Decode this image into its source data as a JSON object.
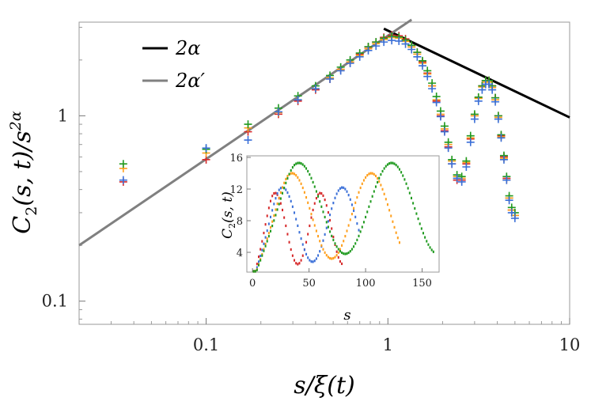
{
  "chart_data": [
    {
      "type": "scatter",
      "xscale": "log",
      "yscale": "log",
      "xlim": [
        0.02,
        10
      ],
      "ylim": [
        0.075,
        3.2
      ],
      "xticks": [
        {
          "v": 0.1,
          "label": "0.1"
        },
        {
          "v": 1,
          "label": "1"
        },
        {
          "v": 10,
          "label": "10"
        }
      ],
      "yticks": [
        {
          "v": 0.1,
          "label": "0.1"
        },
        {
          "v": 1,
          "label": "1"
        }
      ],
      "xlabel": "s/ξ(t)",
      "ylabel_main": "C",
      "ylabel_sub": "2",
      "ylabel_rest": "(s, t)/s",
      "ylabel_sup": "2α",
      "legend": [
        {
          "label": "2α",
          "color": "#000000"
        },
        {
          "label": "2α′",
          "color": "#808080"
        }
      ],
      "lines": [
        {
          "name": "2α",
          "color": "#000000",
          "x": [
            0.95,
            10
          ],
          "y": [
            2.95,
            0.98
          ]
        },
        {
          "name": "2α′",
          "color": "#808080",
          "x": [
            0.02,
            1.35
          ],
          "y": [
            0.2,
            3.3
          ]
        }
      ],
      "series": [
        {
          "color": "#d62728",
          "x": [
            0.035,
            0.1,
            0.17,
            0.25,
            0.32,
            0.4,
            0.48,
            0.55,
            0.62,
            0.7,
            0.78,
            0.86,
            0.95,
            1.05,
            1.15,
            1.25,
            1.35,
            1.45,
            1.55,
            1.65,
            1.75,
            1.85,
            1.95,
            2.05,
            2.15,
            2.25,
            2.4,
            2.55,
            2.7,
            2.85,
            3.0,
            3.15,
            3.3,
            3.45,
            3.6,
            3.75,
            3.9,
            4.05,
            4.2,
            4.35,
            4.5,
            4.65,
            4.8,
            5.0
          ],
          "y": [
            0.44,
            0.58,
            0.82,
            1.02,
            1.2,
            1.38,
            1.58,
            1.78,
            1.95,
            2.15,
            2.35,
            2.5,
            2.65,
            2.72,
            2.7,
            2.6,
            2.4,
            2.2,
            1.95,
            1.7,
            1.45,
            1.2,
            1.0,
            0.83,
            0.68,
            0.55,
            0.45,
            0.45,
            0.55,
            0.75,
            1.0,
            1.25,
            1.45,
            1.55,
            1.55,
            1.45,
            1.25,
            1.0,
            0.78,
            0.6,
            0.46,
            0.36,
            0.31,
            0.29
          ]
        },
        {
          "color": "#ff9f1c",
          "x": [
            0.035,
            0.1,
            0.17,
            0.25,
            0.32,
            0.4,
            0.48,
            0.55,
            0.62,
            0.7,
            0.78,
            0.86,
            0.95,
            1.05,
            1.15,
            1.25,
            1.35,
            1.45,
            1.55,
            1.65,
            1.75,
            1.85,
            1.95,
            2.05,
            2.15,
            2.25,
            2.4,
            2.55,
            2.7,
            2.85,
            3.0,
            3.15,
            3.3,
            3.45,
            3.6,
            3.75,
            3.9,
            4.05,
            4.2,
            4.35,
            4.5,
            4.65,
            4.8,
            5.0
          ],
          "y": [
            0.52,
            0.63,
            0.86,
            1.04,
            1.22,
            1.4,
            1.6,
            1.78,
            1.95,
            2.12,
            2.3,
            2.45,
            2.58,
            2.64,
            2.62,
            2.52,
            2.35,
            2.15,
            1.92,
            1.68,
            1.45,
            1.22,
            1.02,
            0.85,
            0.7,
            0.57,
            0.47,
            0.46,
            0.56,
            0.76,
            1.0,
            1.24,
            1.43,
            1.52,
            1.52,
            1.42,
            1.22,
            0.98,
            0.77,
            0.59,
            0.45,
            0.36,
            0.31,
            0.29
          ]
        },
        {
          "color": "#1f9a1f",
          "x": [
            0.035,
            0.1,
            0.17,
            0.25,
            0.32,
            0.4,
            0.48,
            0.55,
            0.62,
            0.7,
            0.78,
            0.86,
            0.95,
            1.05,
            1.15,
            1.25,
            1.35,
            1.45,
            1.55,
            1.65,
            1.75,
            1.85,
            1.95,
            2.05,
            2.15,
            2.25,
            2.4,
            2.55,
            2.7,
            2.85,
            3.0,
            3.15,
            3.3,
            3.45,
            3.6,
            3.75,
            3.9,
            4.05,
            4.2,
            4.35,
            4.5,
            4.65,
            4.8,
            5.0
          ],
          "y": [
            0.55,
            0.66,
            0.9,
            1.1,
            1.28,
            1.45,
            1.65,
            1.83,
            2.0,
            2.18,
            2.36,
            2.5,
            2.62,
            2.68,
            2.66,
            2.56,
            2.4,
            2.2,
            1.98,
            1.75,
            1.5,
            1.27,
            1.06,
            0.88,
            0.72,
            0.58,
            0.48,
            0.47,
            0.57,
            0.78,
            1.02,
            1.26,
            1.45,
            1.55,
            1.55,
            1.45,
            1.25,
            1.0,
            0.79,
            0.61,
            0.47,
            0.37,
            0.32,
            0.3
          ]
        },
        {
          "color": "#3a6fd8",
          "x": [
            0.035,
            0.1,
            0.17,
            0.25,
            0.32,
            0.4,
            0.48,
            0.55,
            0.62,
            0.7,
            0.78,
            0.86,
            0.95,
            1.05,
            1.15,
            1.25,
            1.35,
            1.45,
            1.55,
            1.65,
            1.75,
            1.85,
            1.95,
            2.05,
            2.15,
            2.25,
            2.4,
            2.55,
            2.7,
            2.85,
            3.0,
            3.15,
            3.3,
            3.45,
            3.6,
            3.75,
            3.9,
            4.05,
            4.2,
            4.35,
            4.5,
            4.65,
            4.8,
            5.0
          ],
          "y": [
            0.45,
            0.67,
            0.74,
            1.05,
            1.22,
            1.4,
            1.58,
            1.75,
            1.92,
            2.08,
            2.25,
            2.38,
            2.5,
            2.55,
            2.53,
            2.44,
            2.28,
            2.08,
            1.86,
            1.63,
            1.4,
            1.18,
            0.99,
            0.82,
            0.67,
            0.55,
            0.46,
            0.44,
            0.53,
            0.72,
            0.96,
            1.2,
            1.38,
            1.48,
            1.48,
            1.38,
            1.19,
            0.96,
            0.76,
            0.58,
            0.45,
            0.35,
            0.3,
            0.28
          ]
        }
      ]
    },
    {
      "type": "scatter",
      "xlim": [
        -5,
        165
      ],
      "ylim": [
        1.5,
        16.2
      ],
      "xticks": [
        0,
        50,
        100,
        150
      ],
      "yticks": [
        4,
        8,
        12,
        16
      ],
      "xlabel": "s",
      "ylabel_main": "C",
      "ylabel_sub": "2",
      "ylabel_rest": "(s, t)",
      "series": [
        {
          "color": "#d62728",
          "amp": 11.5,
          "base": 2.5,
          "period": 40,
          "xend": 80
        },
        {
          "color": "#3a6fd8",
          "amp": 12.2,
          "base": 2.8,
          "period": 53,
          "xend": 95
        },
        {
          "color": "#ff9f1c",
          "amp": 14.0,
          "base": 3.2,
          "period": 70,
          "xend": 130
        },
        {
          "color": "#1f9a1f",
          "amp": 15.3,
          "base": 3.8,
          "period": 82,
          "xend": 160
        }
      ]
    }
  ]
}
